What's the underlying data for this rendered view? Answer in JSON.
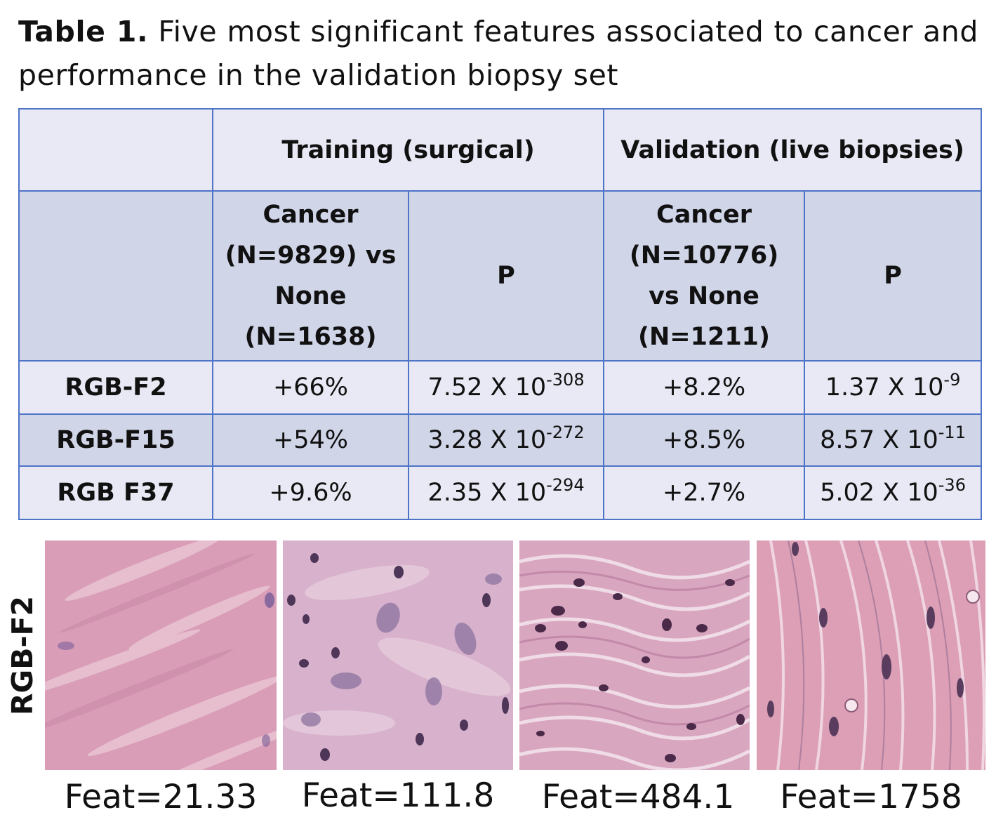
{
  "caption": {
    "label": "Table 1.",
    "text": "Five most significant features associated to cancer and performance in the validation biopsy set"
  },
  "table": {
    "group_headers": [
      "",
      "Training (surgical)",
      "Validation (live biopsies)"
    ],
    "sub_headers": {
      "training_comparison": [
        "Cancer",
        "(N=9829) vs",
        "None",
        "(N=1638)"
      ],
      "training_p": "P",
      "validation_comparison": [
        "Cancer",
        "(N=10776)",
        "vs None",
        "(N=1211)"
      ],
      "validation_p": "P"
    },
    "rows": [
      {
        "feature": "RGB-F2",
        "train_change": "+66%",
        "train_p_base": "7.52 X 10",
        "train_p_exp": "-308",
        "val_change": "+8.2%",
        "val_p_base": "1.37 X 10",
        "val_p_exp": "-9"
      },
      {
        "feature": "RGB-F15",
        "train_change": "+54%",
        "train_p_base": "3.28 X 10",
        "train_p_exp": "-272",
        "val_change": "+8.5%",
        "val_p_base": "8.57 X 10",
        "val_p_exp": "-11"
      },
      {
        "feature": "RGB F37",
        "train_change": "+9.6%",
        "train_p_base": "2.35 X 10",
        "train_p_exp": "-294",
        "val_change": "+2.7%",
        "val_p_base": "5.02 X 10",
        "val_p_exp": "-36"
      }
    ]
  },
  "figure": {
    "row_label": "RGB-F2",
    "tiles": [
      {
        "label": "Feat=21.33"
      },
      {
        "label": "Feat=111.8"
      },
      {
        "label": "Feat=484.1"
      },
      {
        "label": "Feat=1758"
      }
    ]
  }
}
